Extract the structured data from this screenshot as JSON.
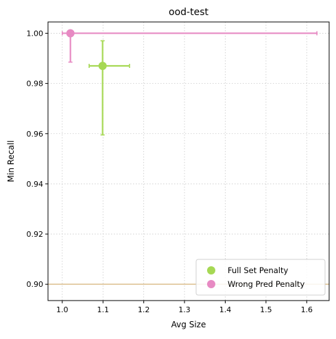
{
  "chart_data": {
    "type": "scatter",
    "title": "ood-test",
    "xlabel": "Avg Size",
    "ylabel": "Min Recall",
    "xlim": [
      0.965,
      1.655
    ],
    "ylim": [
      0.8935,
      1.0045
    ],
    "xticks": [
      1.0,
      1.1,
      1.2,
      1.3,
      1.4,
      1.5,
      1.6
    ],
    "xtick_labels": [
      "1.0",
      "1.1",
      "1.2",
      "1.3",
      "1.4",
      "1.5",
      "1.6"
    ],
    "yticks": [
      0.9,
      0.92,
      0.94,
      0.96,
      0.98,
      1.0
    ],
    "ytick_labels": [
      "0.90",
      "0.92",
      "0.94",
      "0.96",
      "0.98",
      "1.00"
    ],
    "grid": true,
    "legend_position": "lower-right",
    "reference_line": {
      "y": 0.9,
      "color": "#dfc497"
    },
    "series": [
      {
        "name": "Full Set Penalty",
        "color": "#a6d854",
        "x": 1.099,
        "y": 0.987,
        "x_err": [
          1.066,
          1.165
        ],
        "y_err": [
          0.9595,
          0.997
        ]
      },
      {
        "name": "Wrong Pred Penalty",
        "color": "#e78ac3",
        "x": 1.02,
        "y": 1.0,
        "x_err": [
          1.0,
          1.625
        ],
        "y_err": [
          0.9885,
          1.0
        ]
      }
    ]
  }
}
